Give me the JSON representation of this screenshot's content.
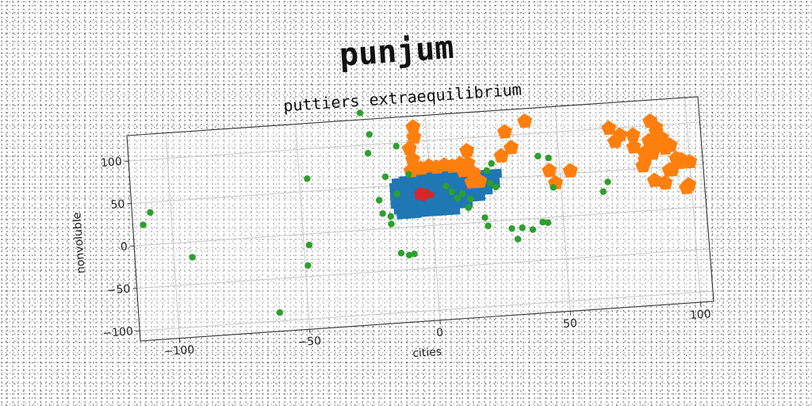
{
  "chart_data": {
    "type": "scatter",
    "title": "punjum",
    "subtitle": "puttiers extraequilibrium",
    "xlabel": "cities",
    "ylabel": "nonvoluble",
    "xlim": [
      -115,
      105
    ],
    "ylim": [
      -112,
      130
    ],
    "xticks": [
      -100,
      -50,
      0,
      50,
      100
    ],
    "yticks": [
      -100,
      -50,
      0,
      50,
      100
    ],
    "grid": true,
    "colors": [
      "#1f77b4",
      "#ff7f0e",
      "#2ca02c",
      "#d62728"
    ],
    "series": [
      {
        "marker": "square",
        "color": "#1f77b4",
        "points": [
          [
            -13,
            53
          ],
          [
            -10,
            55
          ],
          [
            -7,
            57
          ],
          [
            -4,
            58
          ],
          [
            -1,
            58
          ],
          [
            2,
            58
          ],
          [
            5,
            58
          ],
          [
            8,
            58
          ],
          [
            11,
            57
          ],
          [
            14,
            57
          ],
          [
            17,
            56
          ],
          [
            20,
            56
          ],
          [
            23,
            56
          ],
          [
            26,
            56
          ],
          [
            -14,
            48
          ],
          [
            -11,
            49
          ],
          [
            -8,
            50
          ],
          [
            -5,
            50
          ],
          [
            -2,
            51
          ],
          [
            1,
            51
          ],
          [
            4,
            51
          ],
          [
            7,
            51
          ],
          [
            10,
            51
          ],
          [
            13,
            51
          ],
          [
            16,
            51
          ],
          [
            19,
            50
          ],
          [
            22,
            50
          ],
          [
            25,
            50
          ],
          [
            -14,
            42
          ],
          [
            -11,
            42
          ],
          [
            -8,
            43
          ],
          [
            -5,
            43
          ],
          [
            -2,
            44
          ],
          [
            1,
            44
          ],
          [
            4,
            44
          ],
          [
            7,
            44
          ],
          [
            10,
            44
          ],
          [
            13,
            44
          ],
          [
            16,
            44
          ],
          [
            19,
            44
          ],
          [
            22,
            44
          ],
          [
            25,
            44
          ],
          [
            -14,
            35
          ],
          [
            -11,
            35
          ],
          [
            -8,
            36
          ],
          [
            -5,
            36
          ],
          [
            -2,
            37
          ],
          [
            1,
            37
          ],
          [
            4,
            37
          ],
          [
            7,
            37
          ],
          [
            10,
            37
          ],
          [
            13,
            37
          ],
          [
            16,
            37
          ],
          [
            19,
            37
          ],
          [
            22,
            37
          ],
          [
            -14,
            28
          ],
          [
            -11,
            28
          ],
          [
            -8,
            29
          ],
          [
            -5,
            29
          ],
          [
            -2,
            30
          ],
          [
            1,
            30
          ],
          [
            4,
            30
          ],
          [
            7,
            30
          ],
          [
            10,
            30
          ],
          [
            13,
            30
          ],
          [
            16,
            30
          ],
          [
            19,
            30
          ],
          [
            -13,
            21
          ],
          [
            -10,
            21
          ],
          [
            -7,
            22
          ],
          [
            -4,
            22
          ],
          [
            -1,
            22
          ],
          [
            2,
            23
          ],
          [
            5,
            23
          ],
          [
            8,
            23
          ],
          [
            11,
            23
          ],
          [
            14,
            23
          ],
          [
            -12,
            15
          ],
          [
            -9,
            15
          ],
          [
            -6,
            15
          ],
          [
            -3,
            16
          ],
          [
            0,
            16
          ],
          [
            3,
            16
          ],
          [
            6,
            16
          ],
          [
            9,
            16
          ]
        ]
      },
      {
        "marker": "pentagon",
        "color": "#ff7f0e",
        "points": [
          [
            -5,
            117
          ],
          [
            -5,
            105
          ],
          [
            -7,
            92
          ],
          [
            -6,
            79
          ],
          [
            -7,
            66
          ],
          [
            -3,
            68
          ],
          [
            0,
            70
          ],
          [
            3,
            68
          ],
          [
            6,
            70
          ],
          [
            9,
            68
          ],
          [
            12,
            70
          ],
          [
            15,
            70
          ],
          [
            13,
            62
          ],
          [
            17,
            58
          ],
          [
            16,
            48
          ],
          [
            19,
            48
          ],
          [
            15,
            85
          ],
          [
            30,
            104
          ],
          [
            28,
            76
          ],
          [
            32,
            85
          ],
          [
            38,
            115
          ],
          [
            46,
            55
          ],
          [
            48,
            40
          ],
          [
            54,
            53
          ],
          [
            70,
            100
          ],
          [
            72,
            84
          ],
          [
            74,
            91
          ],
          [
            79,
            90
          ],
          [
            79,
            76
          ],
          [
            83,
            68
          ],
          [
            83,
            60
          ],
          [
            82,
            53
          ],
          [
            86,
            105
          ],
          [
            88,
            97
          ],
          [
            88,
            92
          ],
          [
            85,
            82
          ],
          [
            87,
            77
          ],
          [
            86,
            73
          ],
          [
            86,
            67
          ],
          [
            90,
            84
          ],
          [
            91,
            72
          ],
          [
            93,
            75
          ],
          [
            95,
            59
          ],
          [
            97,
            57
          ],
          [
            96,
            54
          ],
          [
            100,
            54
          ],
          [
            93,
            46
          ],
          [
            92,
            46
          ],
          [
            86,
            35
          ],
          [
            90,
            31
          ],
          [
            99,
            27
          ],
          [
            98,
            24
          ]
        ]
      },
      {
        "marker": "circle",
        "color": "#2ca02c",
        "points": [
          [
            -111,
            24
          ],
          [
            -108,
            38
          ],
          [
            -93,
            -18
          ],
          [
            -47,
            65
          ],
          [
            -48,
            -13
          ],
          [
            -49,
            -37
          ],
          [
            -61,
            -90
          ],
          [
            -25,
            138
          ],
          [
            -22,
            112
          ],
          [
            -23,
            90
          ],
          [
            -17,
            61
          ],
          [
            -20,
            34
          ],
          [
            -19,
            18
          ],
          [
            -16,
            14
          ],
          [
            -13,
            -30
          ],
          [
            -10,
            -33
          ],
          [
            -8,
            -32
          ],
          [
            -16,
            5
          ],
          [
            -12,
            96
          ],
          [
            -8,
            62
          ],
          [
            -13,
            40
          ],
          [
            30,
            -10
          ],
          [
            32,
            -23
          ],
          [
            34,
            -10
          ],
          [
            38,
            -13
          ],
          [
            42,
            -5
          ],
          [
            44,
            -6
          ],
          [
            20,
            5
          ],
          [
            21,
            -5
          ],
          [
            23,
            45
          ],
          [
            25,
            40
          ],
          [
            24,
            68
          ],
          [
            22,
            60
          ],
          [
            12,
            35
          ],
          [
            15,
            28
          ],
          [
            6,
            45
          ],
          [
            8,
            38
          ],
          [
            10,
            30
          ],
          [
            14,
            18
          ],
          [
            47,
            35
          ],
          [
            42,
            73
          ],
          [
            46,
            70
          ],
          [
            66,
            26
          ],
          [
            68,
            37
          ]
        ]
      },
      {
        "marker": "circle",
        "color": "#d62728",
        "points": [
          [
            -4,
            37
          ],
          [
            -2,
            35
          ],
          [
            -3,
            40
          ],
          [
            -5,
            35
          ],
          [
            -1,
            38
          ],
          [
            -3,
            33
          ],
          [
            0,
            36
          ],
          [
            -4,
            42
          ],
          [
            -2,
            40
          ],
          [
            -5,
            39
          ]
        ]
      }
    ]
  }
}
